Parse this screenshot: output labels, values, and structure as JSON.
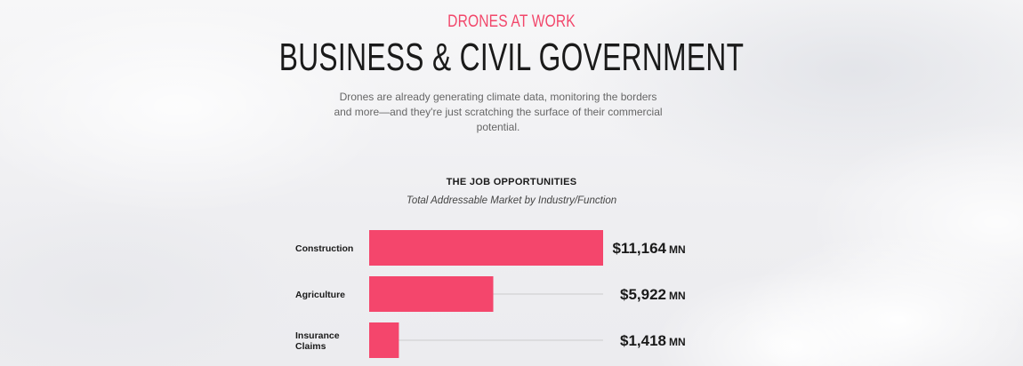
{
  "header": {
    "eyebrow": "DRONES AT WORK",
    "title": "BUSINESS & CIVIL GOVERNMENT",
    "subtitle": "Drones are already generating climate data, monitoring the borders and more—and they're just scratching the surface of their commercial potential."
  },
  "chart_data": {
    "type": "bar",
    "orientation": "horizontal",
    "title": "THE JOB OPPORTUNITIES",
    "subtitle": "Total Addressable Market by Industry/Function",
    "categories": [
      [
        "Construction"
      ],
      [
        "Agriculture"
      ],
      [
        "Insurance",
        "Claims"
      ]
    ],
    "values": [
      11164,
      5922,
      1418
    ],
    "value_labels": [
      "$11,164",
      "$5,922",
      "$1,418"
    ],
    "unit": "MN",
    "xlim": [
      0,
      11164
    ],
    "bar_color": "#f4466c",
    "track_color": "#cccccc"
  }
}
